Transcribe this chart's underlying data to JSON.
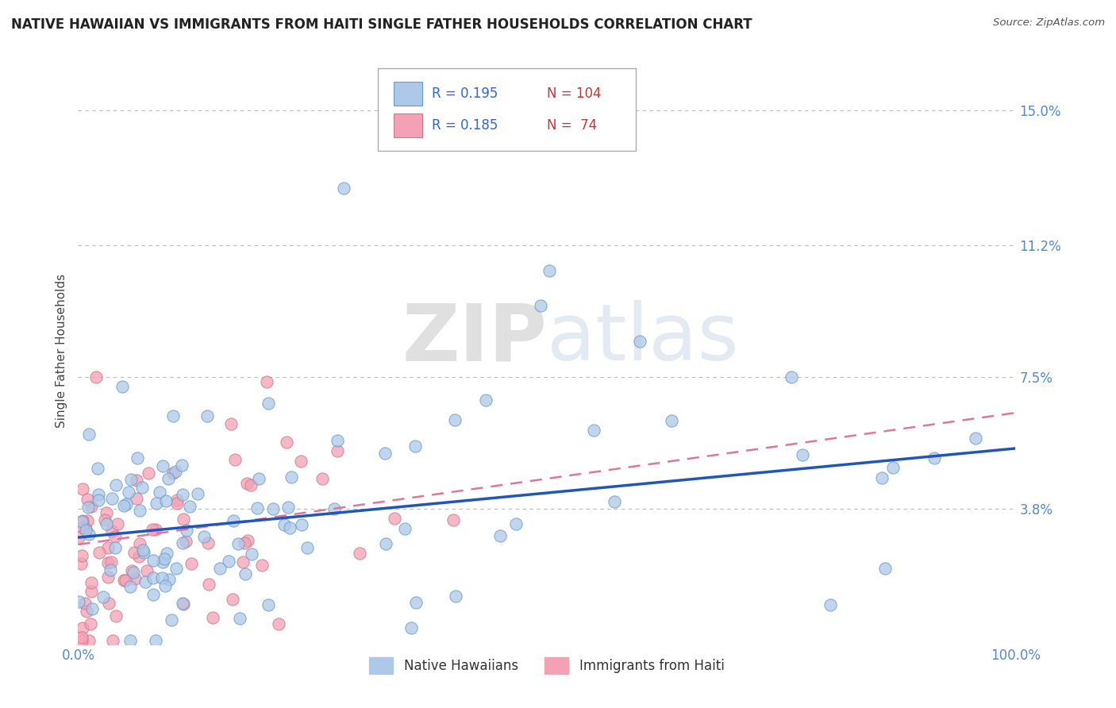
{
  "title": "NATIVE HAWAIIAN VS IMMIGRANTS FROM HAITI SINGLE FATHER HOUSEHOLDS CORRELATION CHART",
  "source": "Source: ZipAtlas.com",
  "ylabel": "Single Father Households",
  "watermark": "ZIPatlas",
  "series1_label": "Native Hawaiians",
  "series1_color": "#adc8e8",
  "series1_edge": "#6699cc",
  "series1_R": 0.195,
  "series1_N": 104,
  "series2_label": "Immigrants from Haiti",
  "series2_color": "#f4a0b5",
  "series2_edge": "#cc7788",
  "series2_R": 0.185,
  "series2_N": 74,
  "trend1_color": "#2255bb",
  "trend2_color": "#dd7799",
  "xmin": 0.0,
  "xmax": 100.0,
  "ymin": 0.0,
  "ymax": 0.165,
  "yticks": [
    0.0,
    0.038,
    0.075,
    0.112,
    0.15
  ],
  "ytick_labels": [
    "",
    "3.8%",
    "7.5%",
    "11.2%",
    "15.0%"
  ],
  "xtick_labels": [
    "0.0%",
    "100.0%"
  ],
  "background_color": "#ffffff",
  "grid_color": "#bbbbbb",
  "title_fontsize": 12,
  "axis_label_color": "#5588cc",
  "legend_R_color": "#3366cc",
  "legend_N_color": "#cc3333"
}
